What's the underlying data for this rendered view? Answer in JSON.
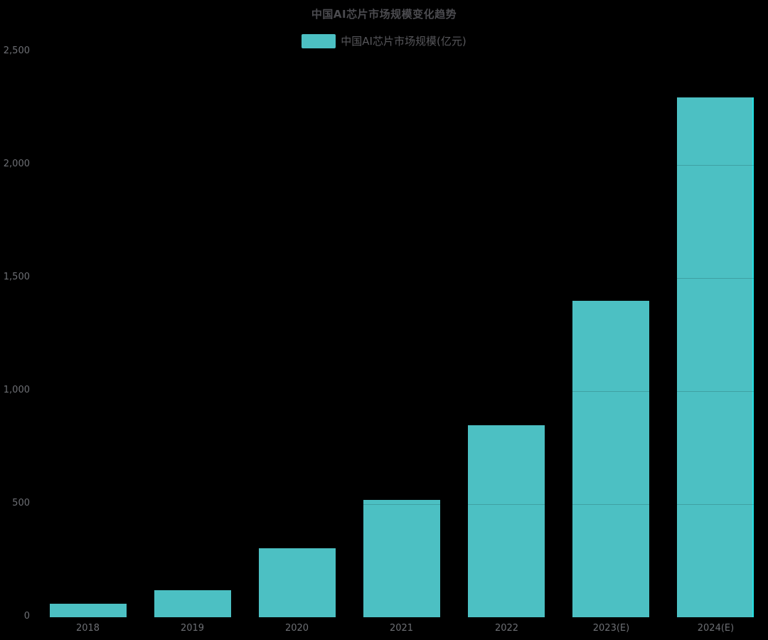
{
  "chart_data": {
    "type": "bar",
    "title": "中国AI芯片市场规模变化趋势",
    "legend": [
      {
        "label": "中国AI芯片市场规模(亿元)",
        "color": "#4CC0C3"
      }
    ],
    "legend_position": "top-center",
    "categories": [
      "2018",
      "2019",
      "2020",
      "2021",
      "2022",
      "2023(E)",
      "2024(E)"
    ],
    "series": [
      {
        "name": "中国AI芯片市场规模(亿元)",
        "values": [
          60,
          120,
          305,
          520,
          850,
          1400,
          2300
        ]
      }
    ],
    "xlabel": "",
    "ylabel": "",
    "ylim": [
      0,
      2500
    ],
    "ytick_interval": 500,
    "ytick_labels": [
      "0",
      "500",
      "1,000",
      "1,500",
      "2,000",
      "2,500"
    ],
    "grid": "horizontal",
    "bar_color": "#4CC0C3",
    "bar_highlight_edge_color": "#23e2e4",
    "background": "#000000"
  }
}
